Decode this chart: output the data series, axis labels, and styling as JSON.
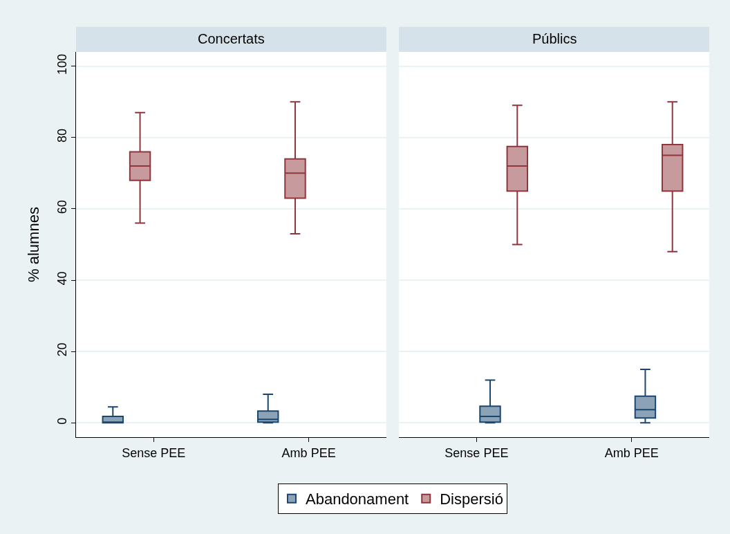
{
  "chart_data": [
    {
      "type": "box",
      "title": "Concertats",
      "ylabel": "% alumnes",
      "categories": [
        "Sense PEE",
        "Amb PEE"
      ],
      "ylim": [
        -4,
        104
      ],
      "yticks": [
        0,
        20,
        40,
        60,
        80,
        100
      ],
      "grid": "y",
      "legend": "bottom",
      "series": [
        {
          "name": "Abandonament",
          "color": "#1a476f",
          "boxes": [
            {
              "low": 0,
              "q1": 0,
              "median": 0.1,
              "q3": 1.8,
              "high": 4.5
            },
            {
              "low": 0,
              "q1": 0.2,
              "median": 1,
              "q3": 3.3,
              "high": 8
            }
          ]
        },
        {
          "name": "Dispersió",
          "color": "#90353b",
          "boxes": [
            {
              "low": 56,
              "q1": 68,
              "median": 72,
              "q3": 76,
              "high": 87
            },
            {
              "low": 53,
              "q1": 63,
              "median": 70,
              "q3": 74,
              "high": 90
            }
          ]
        }
      ]
    },
    {
      "type": "box",
      "title": "Públics",
      "categories": [
        "Sense PEE",
        "Amb PEE"
      ],
      "ylim": [
        -4,
        104
      ],
      "yticks": [
        0,
        20,
        40,
        60,
        80,
        100
      ],
      "grid": "y",
      "legend": false,
      "tick_labels": "x",
      "series": [
        {
          "color": "#1a476f",
          "boxes": [
            {
              "low": 0,
              "q1": 0.2,
              "median": 1.8,
              "q3": 4.7,
              "high": 12
            },
            {
              "low": 0,
              "q1": 1.4,
              "median": 3.7,
              "q3": 7.5,
              "high": 15
            }
          ]
        },
        {
          "color": "#90353b",
          "boxes": [
            {
              "low": 50,
              "q1": 65,
              "median": 72,
              "q3": 77.5,
              "high": 89
            },
            {
              "low": 48,
              "q1": 65,
              "median": 75,
              "q3": 78,
              "high": 90
            }
          ]
        }
      ]
    }
  ]
}
